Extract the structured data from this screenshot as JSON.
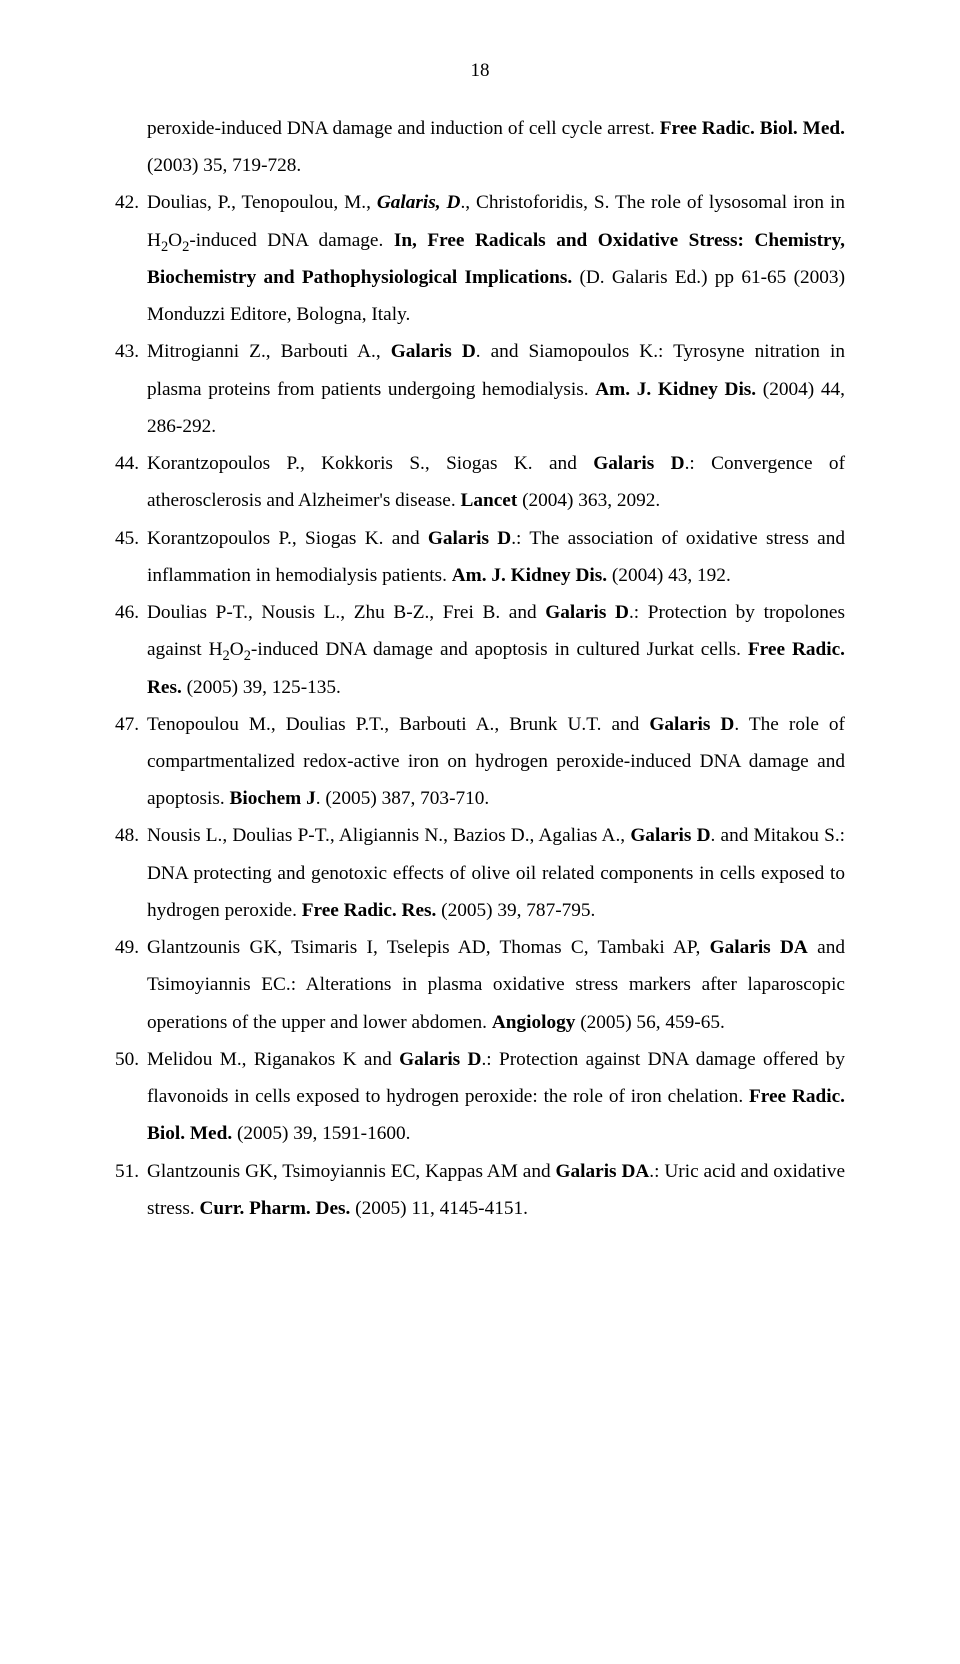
{
  "page_number": "18",
  "references": [
    {
      "num": "",
      "html": "peroxide-induced DNA damage and induction of cell cycle arrest. <b>Free Radic. Biol. Med.</b> (2003) 35, 719-728.",
      "continuation": true
    },
    {
      "num": "42.",
      "html": "Doulias, P., Tenopoulou, M., <b><i>Galaris, D</i></b>., Christoforidis, S. The role of lysosomal iron in H<sub>2</sub>O<sub>2</sub>-induced DNA damage. <b>In, Free Radicals and Oxidative Stress: Chemistry, Biochemistry and Pathophysiological Implications.</b> (D. Galaris Ed.) pp 61-65 (2003) Monduzzi Editore, Bologna, Italy."
    },
    {
      "num": "43.",
      "html": "Mitrogianni Z., Barbouti A., <b>Galaris D</b>. and Siamopoulos K.: Tyrosyne nitration in plasma proteins from patients undergoing hemodialysis. <b>Am. J. Kidney Dis.</b> (2004) 44, 286-292."
    },
    {
      "num": "44.",
      "html": "Korantzopoulos P., Kokkoris S., Siogas K. and <b>Galaris D</b>.: Convergence of atherosclerosis and Alzheimer's disease. <b>Lancet</b> (2004) 363, 2092."
    },
    {
      "num": "45.",
      "html": "Korantzopoulos P., Siogas K. and <b>Galaris D</b>.: The association of oxidative stress and inflammation in hemodialysis patients. <b>Am. J. Kidney Dis.</b> (2004) 43, 192."
    },
    {
      "num": "46.",
      "html": "Doulias P-T., Nousis L., Zhu B-Z., Frei B. and <b>Galaris D</b>.: Protection by tropolones against H<sub>2</sub>O<sub>2</sub>-induced DNA damage and apoptosis in cultured Jurkat cells. <b>Free Radic. Res.</b> (2005) 39, 125-135."
    },
    {
      "num": "47.",
      "html": "Tenopoulou M., Doulias P.T., Barbouti A., Brunk U.T. and <b>Galaris D</b>. The role of compartmentalized redox-active iron on hydrogen peroxide-induced DNA damage and apoptosis. <b>Biochem J</b>. (2005) 387, 703-710."
    },
    {
      "num": "48.",
      "html": "Nousis L., Doulias P-T., Aligiannis N., Bazios D., Agalias A., <b>Galaris D</b>. and Mitakou S.: DNA protecting and genotoxic effects of olive oil related components in cells exposed to hydrogen peroxide. <b>Free Radic. Res.</b> (2005) 39, 787-795."
    },
    {
      "num": "49.",
      "html": "Glantzounis GK, Tsimaris I, Tselepis AD, Thomas C, Tambaki AP, <b>Galaris DA</b> and Tsimoyiannis EC.: Alterations in plasma oxidative stress markers after laparoscopic operations of the upper and lower abdomen. <b>Angiology</b> (2005) 56, 459-65."
    },
    {
      "num": "50.",
      "html": "Melidou M., Riganakos K and <b>Galaris D</b>.: Protection against DNA damage offered by flavonoids in cells exposed to hydrogen peroxide: the role of iron chelation. <b>Free Radic. Biol. Med.</b> (2005) 39, 1591-1600."
    },
    {
      "num": "51.",
      "html": "Glantzounis GK, Tsimoyiannis EC, Kappas AM and <b>Galaris DA</b>.: Uric acid and oxidative stress. <b>Curr. Pharm. Des.</b> (2005) 11, 4145-4151."
    }
  ]
}
